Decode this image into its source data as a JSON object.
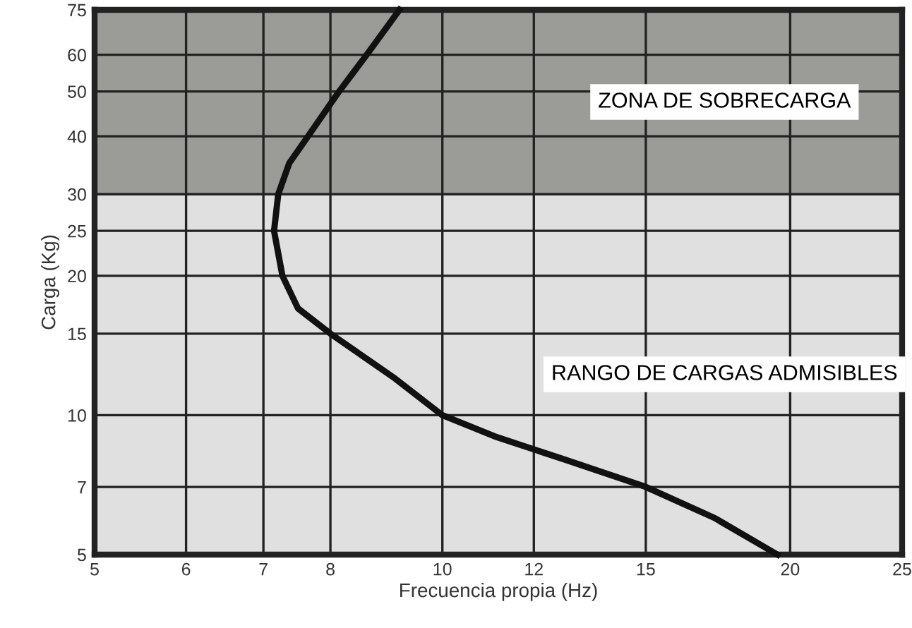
{
  "chart_data": {
    "type": "line",
    "xlabel": "Frecuencia propia (Hz)",
    "ylabel": "Carga (Kg)",
    "log": "xy",
    "series": [
      {
        "color": "#111111",
        "x": [
          19.5,
          17.2,
          15,
          12.8,
          11.1,
          10,
          9.1,
          8.0,
          7.5,
          7.27,
          7.15,
          7.21,
          7.37,
          7.65,
          8.14,
          8.6,
          9.18
        ],
        "values": [
          5,
          6,
          7,
          8,
          9,
          10,
          12,
          15,
          17,
          20,
          25,
          30,
          35,
          40,
          50,
          60,
          75
        ]
      }
    ],
    "xlim": [
      5,
      25
    ],
    "xticks": [
      5,
      6,
      7,
      8,
      10,
      12,
      15,
      20,
      25
    ],
    "ylim": [
      5,
      75
    ],
    "yticks": [
      5,
      7,
      10,
      15,
      20,
      25,
      30,
      40,
      50,
      60,
      75
    ],
    "bands": [
      {
        "axis": "y",
        "from": 5,
        "to": 30,
        "label": "RANGO DE CARGAS ADMISIBLES",
        "color": "#e0e0e0"
      },
      {
        "axis": "y",
        "from": 30,
        "to": 75,
        "label": "ZONA DE SOBRECARGA",
        "color": "#9b9b97"
      }
    ],
    "grid": true,
    "marker": "none",
    "line_style": "solid"
  }
}
